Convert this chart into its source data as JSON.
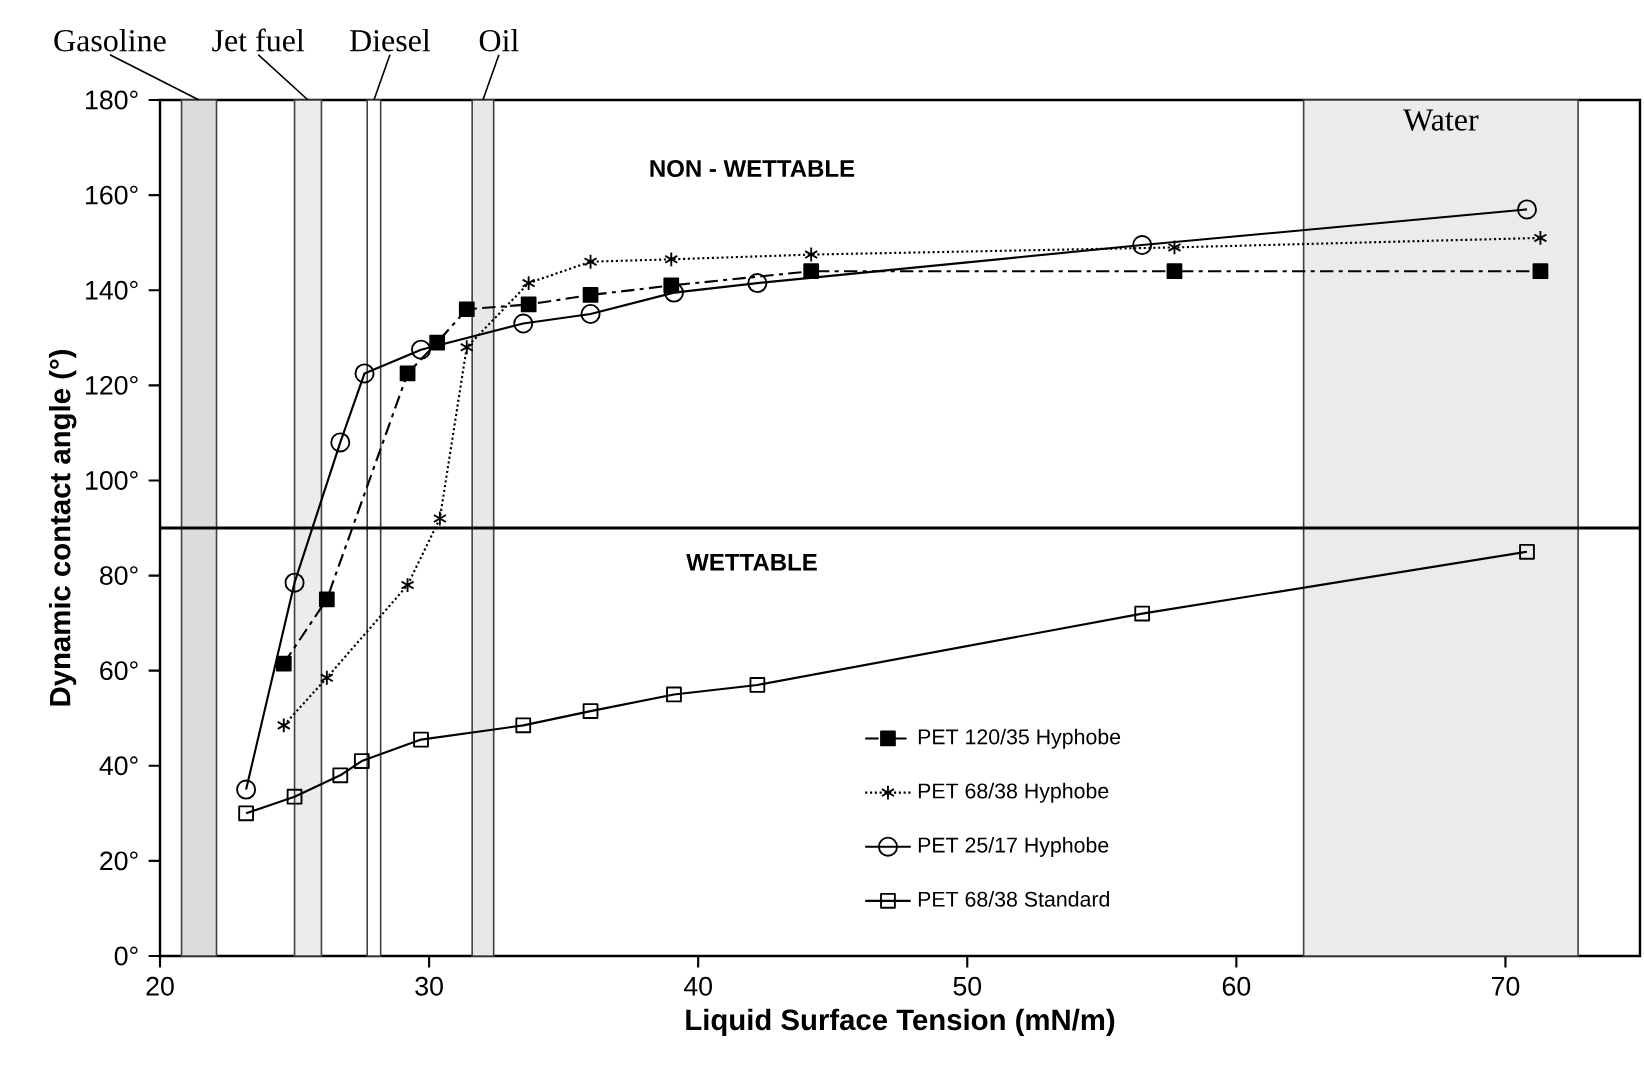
{
  "chart_data": {
    "type": "line",
    "xlabel": "Liquid Surface Tension (mN/m)",
    "ylabel": "Dynamic contact angle (°)",
    "xlim": [
      20,
      75
    ],
    "xticks": [
      20,
      30,
      40,
      50,
      60,
      70
    ],
    "ylim": [
      0,
      180
    ],
    "yticks": [
      {
        "value": 0,
        "label": "0°"
      },
      {
        "value": 20,
        "label": "20°"
      },
      {
        "value": 40,
        "label": "40°"
      },
      {
        "value": 60,
        "label": "60°"
      },
      {
        "value": 80,
        "label": "80°"
      },
      {
        "value": 100,
        "label": "100°"
      },
      {
        "value": 120,
        "label": "120°"
      },
      {
        "value": 140,
        "label": "140°"
      },
      {
        "value": 160,
        "label": "160°"
      },
      {
        "value": 180,
        "label": "180°"
      }
    ],
    "series": [
      {
        "name": "PET 120/35 Hyphobe",
        "color": "#000000",
        "marker": "square",
        "line_style": "dashdot",
        "x": [
          24.6,
          26.2,
          29.2,
          30.3,
          31.4,
          33.7,
          36.0,
          39.0,
          44.2,
          57.7,
          71.3
        ],
        "values": [
          61.5,
          75,
          122.5,
          129,
          136,
          137,
          139,
          141,
          144,
          144,
          144
        ]
      },
      {
        "name": "PET 68/38 Hyphobe",
        "color": "#000000",
        "marker": "cross",
        "line_style": "dotted",
        "x": [
          24.6,
          26.2,
          29.2,
          30.4,
          31.4,
          33.7,
          36.0,
          39.0,
          44.2,
          57.7,
          71.3
        ],
        "values": [
          48.5,
          58.5,
          78,
          92,
          128,
          141.5,
          146,
          146.5,
          147.5,
          149,
          151
        ]
      },
      {
        "name": "PET 25/17 Hyphobe",
        "color": "#000000",
        "marker": "circle",
        "line_style": "solid",
        "x": [
          23.2,
          25.0,
          26.7,
          27.6,
          29.7,
          33.5,
          36.0,
          39.1,
          42.2,
          56.5,
          70.8
        ],
        "values": [
          35,
          78.5,
          108,
          122.5,
          127.5,
          133,
          135,
          139.5,
          141.5,
          149.5,
          157
        ]
      },
      {
        "name": "PET 68/38 Standard",
        "color": "#000000",
        "marker": "square",
        "line_style": "solid",
        "x": [
          23.2,
          25.0,
          26.7,
          27.5,
          29.7,
          33.5,
          36.0,
          39.1,
          42.2,
          56.5,
          70.8
        ],
        "values": [
          30,
          33.5,
          38,
          41,
          45.5,
          48.5,
          51.5,
          55,
          57,
          72,
          85
        ]
      }
    ],
    "ref_lines": [
      {
        "axis": "y",
        "value": 90,
        "color": "#000000"
      }
    ],
    "bands": [
      {
        "axis": "x",
        "from": 20.8,
        "to": 22.1,
        "label": "Gasoline",
        "color": "#dcdcdc"
      },
      {
        "axis": "x",
        "from": 25.0,
        "to": 26.0,
        "label": "Jet fuel",
        "color": "#ececec"
      },
      {
        "axis": "x",
        "from": 27.7,
        "to": 28.2,
        "label": "Diesel",
        "color": "#ffffff"
      },
      {
        "axis": "x",
        "from": 31.6,
        "to": 32.4,
        "label": "Oil",
        "color": "#e8e8e8"
      },
      {
        "axis": "x",
        "from": 62.5,
        "to": 72.7,
        "label": "Water",
        "color": "#ebebeb"
      }
    ],
    "annotations": [
      "NON - WETTABLE",
      "WETTABLE"
    ],
    "legend": "bottom right",
    "grid": false
  }
}
